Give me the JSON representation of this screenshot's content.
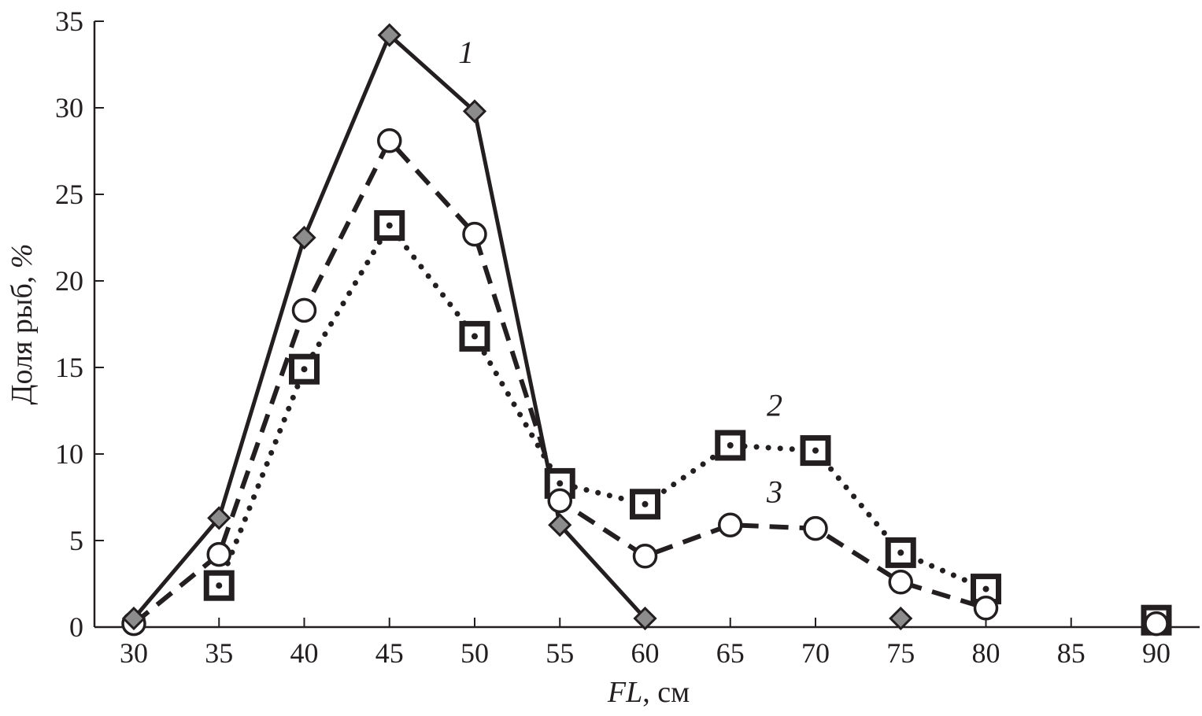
{
  "chart_data": {
    "type": "line",
    "xlabel_italic": "FL",
    "xlabel_rest": ", см",
    "ylabel_main": "Доля рыб, ",
    "ylabel_unit": "%",
    "xlim": [
      30,
      90
    ],
    "ylim": [
      0,
      35
    ],
    "x_ticks": [
      30,
      35,
      40,
      45,
      50,
      55,
      60,
      65,
      70,
      75,
      80,
      85,
      90
    ],
    "y_ticks": [
      0,
      5,
      10,
      15,
      20,
      25,
      30,
      35
    ],
    "grid": false,
    "legend": "none",
    "series": [
      {
        "name": "1",
        "line_style": "solid",
        "marker": "diamond",
        "color": "#231f20",
        "marker_fill": "#8c8c8c",
        "segments": [
          [
            [
              30,
              0.5
            ],
            [
              35,
              6.3
            ],
            [
              40,
              22.5
            ],
            [
              45,
              34.2
            ],
            [
              50,
              29.8
            ],
            [
              55,
              5.9
            ],
            [
              60,
              0.5
            ]
          ],
          [
            [
              75,
              0.5
            ]
          ]
        ]
      },
      {
        "name": "2",
        "line_style": "dotted",
        "marker": "square-dot",
        "color": "#231f20",
        "marker_fill": "#ffffff",
        "segments": [
          [
            [
              35,
              2.4
            ],
            [
              40,
              14.9
            ],
            [
              45,
              23.2
            ],
            [
              50,
              16.8
            ],
            [
              55,
              8.3
            ],
            [
              60,
              7.1
            ],
            [
              65,
              10.5
            ],
            [
              70,
              10.2
            ],
            [
              75,
              4.3
            ],
            [
              80,
              2.2
            ]
          ],
          [
            [
              90,
              0.4
            ]
          ]
        ]
      },
      {
        "name": "3",
        "line_style": "dashed",
        "marker": "circle",
        "color": "#231f20",
        "marker_fill": "#ffffff",
        "segments": [
          [
            [
              30,
              0.2
            ],
            [
              35,
              4.2
            ],
            [
              40,
              18.3
            ],
            [
              45,
              28.1
            ],
            [
              50,
              22.7
            ],
            [
              55,
              7.3
            ],
            [
              60,
              4.1
            ],
            [
              65,
              5.9
            ],
            [
              70,
              5.7
            ],
            [
              75,
              2.6
            ],
            [
              80,
              1.1
            ]
          ],
          [
            [
              90,
              0.2
            ]
          ]
        ]
      }
    ],
    "series_labels": [
      {
        "text": "1",
        "x": 49.5,
        "y": 32.6
      },
      {
        "text": "2",
        "x": 67.6,
        "y": 12.2
      },
      {
        "text": "3",
        "x": 67.6,
        "y": 7.2
      }
    ]
  }
}
